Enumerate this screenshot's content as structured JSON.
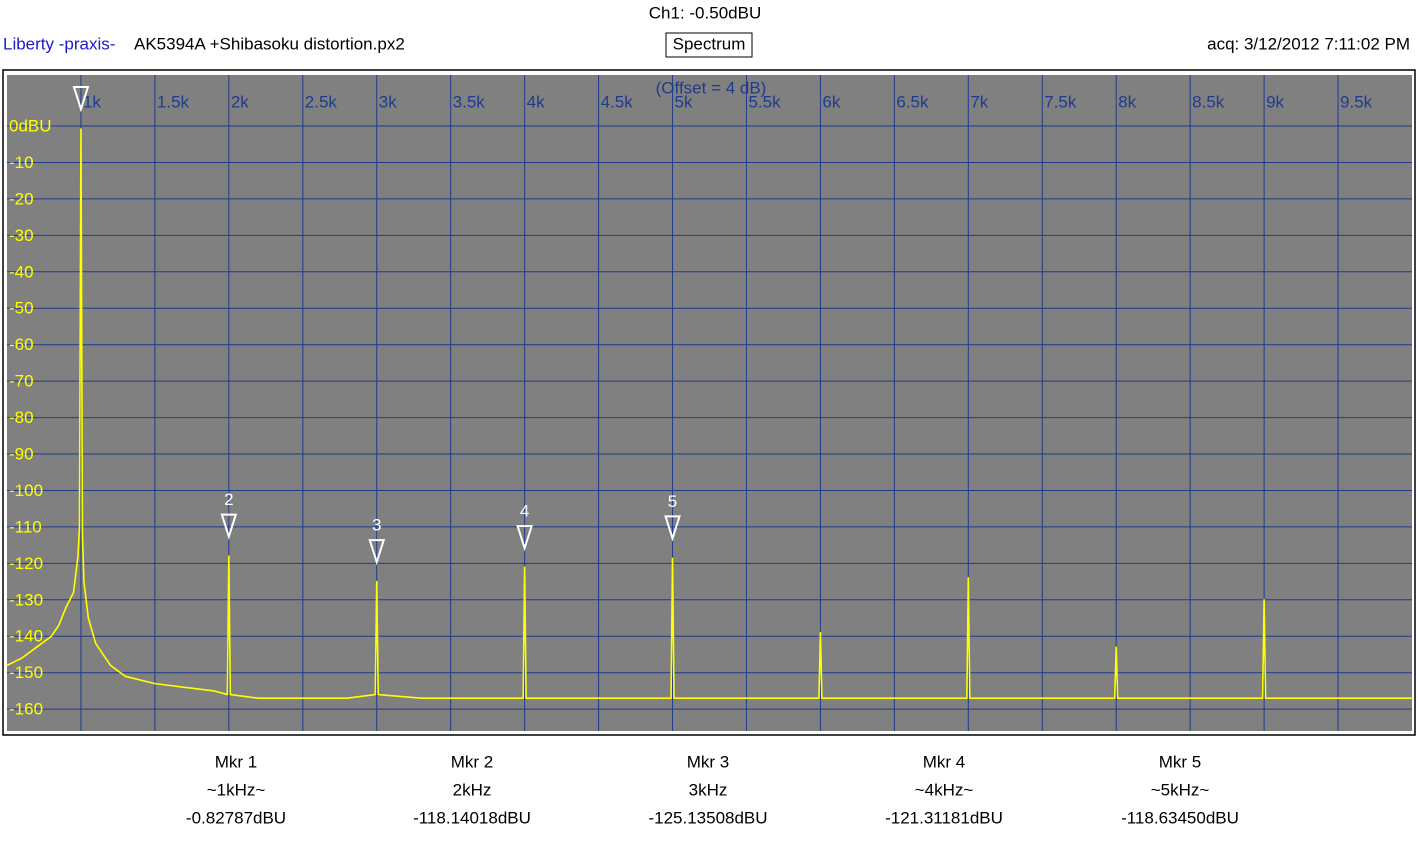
{
  "header": {
    "channel": "Ch1: -0.50dBU",
    "brand": "Liberty -praxis-",
    "file": "AK5394A +Shibasoku distortion.px2",
    "view": "Spectrum",
    "acquired": "acq: 3/12/2012 7:11:02 PM"
  },
  "chart_data": {
    "type": "line",
    "annotation": "(Offset = 4 dB)",
    "x": [
      500,
      600,
      700,
      800,
      850,
      900,
      950,
      980,
      990,
      1000,
      1010,
      1020,
      1050,
      1100,
      1200,
      1300,
      1500,
      1700,
      1900,
      1990,
      2000,
      2010,
      2200,
      2500,
      2800,
      2990,
      3000,
      3010,
      3300,
      3600,
      3990,
      4000,
      4010,
      4500,
      4990,
      5000,
      5010,
      5500,
      5990,
      6000,
      6010,
      6500,
      6990,
      7000,
      7010,
      7500,
      7990,
      8000,
      8010,
      8500,
      8990,
      9000,
      9010,
      9500,
      10000
    ],
    "series": [
      {
        "color": "#ffff00",
        "values": [
          -148,
          -146,
          -143,
          -140,
          -137,
          -132,
          -128,
          -118,
          -110,
          -0.83,
          -112,
          -125,
          -135,
          -142,
          -148,
          -151,
          -153,
          -154,
          -155,
          -156,
          -118,
          -156,
          -157,
          -157,
          -157,
          -156,
          -125,
          -156,
          -157,
          -157,
          -157,
          -121,
          -157,
          -157,
          -157,
          -118.6,
          -157,
          -157,
          -157,
          -139,
          -157,
          -157,
          -157,
          -124,
          -157,
          -157,
          -157,
          -143,
          -157,
          -157,
          -157,
          -130,
          -157,
          -157,
          -157
        ]
      }
    ],
    "xlim": [
      500,
      10000
    ],
    "ylim": [
      -166,
      14
    ],
    "xticks": [
      {
        "value": 1000,
        "label": "1k"
      },
      {
        "value": 1500,
        "label": "1.5k"
      },
      {
        "value": 2000,
        "label": "2k"
      },
      {
        "value": 2500,
        "label": "2.5k"
      },
      {
        "value": 3000,
        "label": "3k"
      },
      {
        "value": 3500,
        "label": "3.5k"
      },
      {
        "value": 4000,
        "label": "4k"
      },
      {
        "value": 4500,
        "label": "4.5k"
      },
      {
        "value": 5000,
        "label": "5k"
      },
      {
        "value": 5500,
        "label": "5.5k"
      },
      {
        "value": 6000,
        "label": "6k"
      },
      {
        "value": 6500,
        "label": "6.5k"
      },
      {
        "value": 7000,
        "label": "7k"
      },
      {
        "value": 7500,
        "label": "7.5k"
      },
      {
        "value": 8000,
        "label": "8k"
      },
      {
        "value": 8500,
        "label": "8.5k"
      },
      {
        "value": 9000,
        "label": "9k"
      },
      {
        "value": 9500,
        "label": "9.5k"
      }
    ],
    "yticks": [
      {
        "value": 0,
        "label": "0dBU"
      },
      -10,
      -20,
      -30,
      -40,
      -50,
      -60,
      -70,
      -80,
      -90,
      -100,
      -110,
      -120,
      -130,
      -140,
      -150,
      -160
    ],
    "grid": true,
    "background": "#808080",
    "grid_color": "#1f3c8c",
    "markers": [
      {
        "name": "Mkr 1",
        "frequency": "~1kHz~",
        "level": "-0.82787dBU",
        "x": 1000,
        "y": -0.82787
      },
      {
        "name": "Mkr 2",
        "id": "2",
        "frequency": "2kHz",
        "level": "-118.14018dBU",
        "x": 2000,
        "y": -118.14018
      },
      {
        "name": "Mkr 3",
        "id": "3",
        "frequency": "3kHz",
        "level": "-125.13508dBU",
        "x": 3000,
        "y": -125.13508
      },
      {
        "name": "Mkr 4",
        "id": "4",
        "frequency": "~4kHz~",
        "level": "-121.31181dBU",
        "x": 4000,
        "y": -121.31181
      },
      {
        "name": "Mkr 5",
        "id": "5",
        "frequency": "~5kHz~",
        "level": "-118.63450dBU",
        "x": 5000,
        "y": -118.6345
      }
    ]
  }
}
